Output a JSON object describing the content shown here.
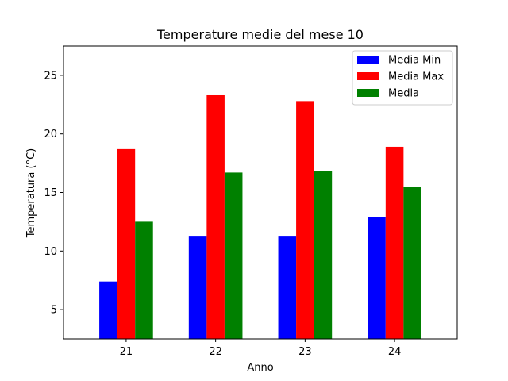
{
  "chart_data": {
    "type": "bar",
    "title": "Temperature medie del mese 10",
    "xlabel": "Anno",
    "ylabel": "Temperatura (°C)",
    "categories": [
      "21",
      "22",
      "23",
      "24"
    ],
    "series": [
      {
        "name": "Media Min",
        "color": "#0000ff",
        "values": [
          7.4,
          11.3,
          11.3,
          12.9
        ]
      },
      {
        "name": "Media Max",
        "color": "#ff0000",
        "values": [
          18.7,
          23.3,
          22.8,
          18.9
        ]
      },
      {
        "name": "Media",
        "color": "#008000",
        "values": [
          12.5,
          16.7,
          16.8,
          15.5
        ]
      }
    ],
    "ylim": [
      2.5,
      27.5
    ],
    "yticks": [
      5,
      10,
      15,
      20,
      25
    ],
    "grid": false,
    "legend_position": "top-right"
  }
}
